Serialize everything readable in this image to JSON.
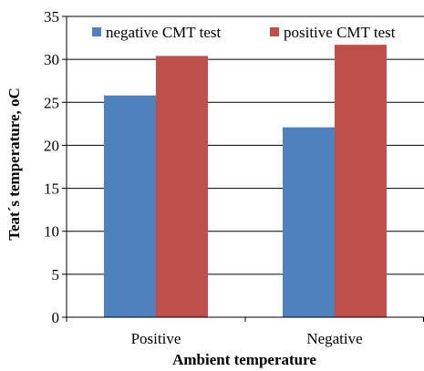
{
  "chart_data": {
    "type": "bar",
    "categories": [
      "Positive",
      "Negative"
    ],
    "series": [
      {
        "name": "negative CMT test",
        "values": [
          25.8,
          22.1
        ],
        "color": "#4F81BD"
      },
      {
        "name": "positive CMT test",
        "values": [
          30.4,
          31.7
        ],
        "color": "#C0504D"
      }
    ],
    "xlabel": "Ambient temperature",
    "ylabel": "Teat´s temperature, oC",
    "ylim": [
      0,
      35
    ],
    "yticks": [
      0,
      5,
      10,
      15,
      20,
      25,
      30,
      35
    ],
    "grid": true,
    "legend": "top"
  }
}
